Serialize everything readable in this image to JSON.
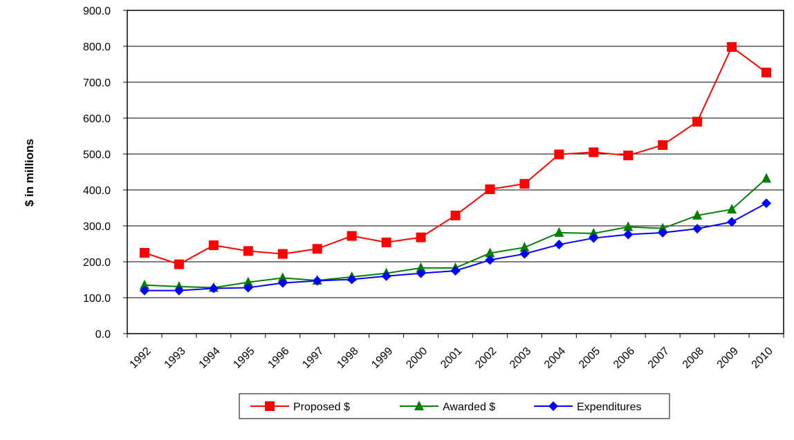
{
  "chart_data": {
    "type": "line",
    "title": "",
    "xlabel": "",
    "ylabel": "$ in millions",
    "ylim": [
      0,
      900
    ],
    "ytick_values": [
      0,
      100,
      200,
      300,
      400,
      500,
      600,
      700,
      800,
      900
    ],
    "ytick_labels": [
      "0.0",
      "100.0",
      "200.0",
      "300.0",
      "400.0",
      "500.0",
      "600.0",
      "700.0",
      "800.0",
      "900.0"
    ],
    "categories": [
      "1992",
      "1993",
      "1994",
      "1995",
      "1996",
      "1997",
      "1998",
      "1999",
      "2000",
      "2001",
      "2002",
      "2003",
      "2004",
      "2005",
      "2006",
      "2007",
      "2008",
      "2009",
      "2010"
    ],
    "grid": "horizontal",
    "legend_position": "bottom",
    "series": [
      {
        "name": "Proposed $",
        "color": "#ff0000",
        "marker": "square",
        "values": [
          225,
          193,
          246,
          230,
          222,
          236,
          272,
          254,
          268,
          329,
          402,
          417,
          499,
          505,
          496,
          525,
          590,
          798,
          727
        ]
      },
      {
        "name": "Awarded $",
        "color": "#008000",
        "marker": "triangle",
        "values": [
          135,
          131,
          128,
          143,
          155,
          148,
          158,
          168,
          183,
          183,
          224,
          240,
          281,
          279,
          297,
          293,
          329,
          346,
          432
        ]
      },
      {
        "name": "Expenditures",
        "color": "#0000ff",
        "marker": "diamond",
        "values": [
          120,
          120,
          126,
          128,
          141,
          147,
          151,
          160,
          168,
          175,
          205,
          222,
          248,
          266,
          276,
          281,
          292,
          311,
          363
        ]
      }
    ]
  }
}
